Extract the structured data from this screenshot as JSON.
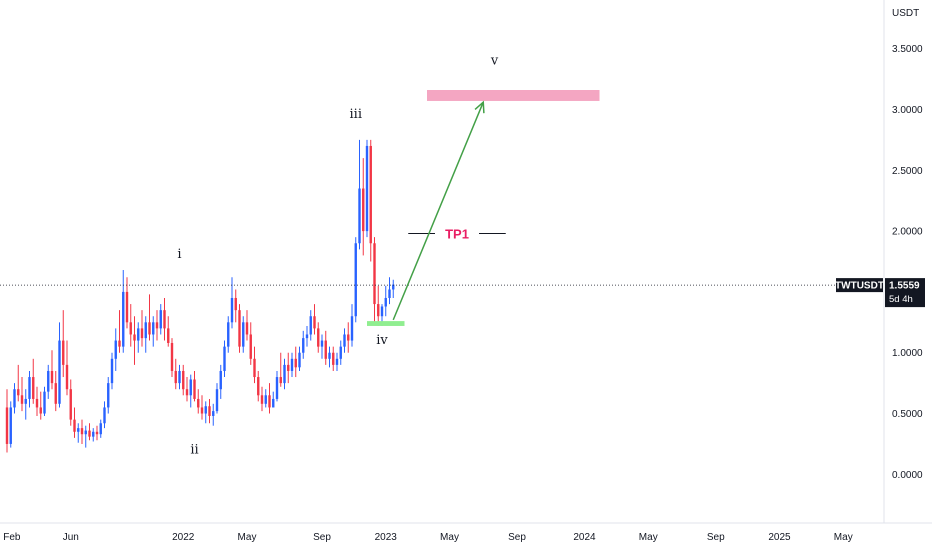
{
  "chart_data": {
    "type": "candlestick",
    "symbol": "TWTUSDT",
    "currency_label": "USDT",
    "last_price": "1.5559",
    "countdown": "5d 4h",
    "ylim": [
      -0.4,
      3.9
    ],
    "y_ticks": [
      {
        "value": 0.0,
        "label": "0.0000"
      },
      {
        "value": 0.5,
        "label": "0.5000"
      },
      {
        "value": 1.0,
        "label": "1.0000"
      },
      {
        "value": 1.5,
        "label": "1.5000"
      },
      {
        "value": 2.0,
        "label": "2.0000"
      },
      {
        "value": 2.5,
        "label": "2.5000"
      },
      {
        "value": 3.0,
        "label": "3.0000"
      },
      {
        "value": 3.5,
        "label": "3.5000"
      }
    ],
    "x_ticks": [
      {
        "i": -1,
        "label": "Feb"
      },
      {
        "i": 17,
        "label": "Jun"
      },
      {
        "i": 47,
        "label": "2022"
      },
      {
        "i": 64,
        "label": "May"
      },
      {
        "i": 84,
        "label": "Sep"
      },
      {
        "i": 101,
        "label": "2023"
      },
      {
        "i": 118,
        "label": "May"
      },
      {
        "i": 136,
        "label": "Sep"
      },
      {
        "i": 154,
        "label": "2024"
      },
      {
        "i": 171,
        "label": "May"
      },
      {
        "i": 189,
        "label": "Sep"
      },
      {
        "i": 206,
        "label": "2025"
      },
      {
        "i": 223,
        "label": "May"
      }
    ],
    "candles": [
      [
        0.55,
        0.7,
        0.18,
        0.25
      ],
      [
        0.25,
        0.6,
        0.22,
        0.55
      ],
      [
        0.55,
        0.75,
        0.5,
        0.7
      ],
      [
        0.7,
        0.9,
        0.6,
        0.65
      ],
      [
        0.65,
        0.8,
        0.52,
        0.58
      ],
      [
        0.58,
        0.7,
        0.45,
        0.62
      ],
      [
        0.62,
        0.85,
        0.55,
        0.8
      ],
      [
        0.8,
        0.95,
        0.58,
        0.62
      ],
      [
        0.62,
        0.72,
        0.48,
        0.55
      ],
      [
        0.55,
        0.68,
        0.45,
        0.5
      ],
      [
        0.5,
        0.72,
        0.48,
        0.68
      ],
      [
        0.68,
        0.9,
        0.62,
        0.85
      ],
      [
        0.85,
        1.02,
        0.7,
        0.75
      ],
      [
        0.75,
        0.85,
        0.52,
        0.58
      ],
      [
        0.58,
        1.25,
        0.55,
        1.1
      ],
      [
        1.1,
        1.35,
        0.8,
        0.9
      ],
      [
        0.9,
        1.1,
        0.65,
        0.7
      ],
      [
        0.7,
        0.78,
        0.4,
        0.45
      ],
      [
        0.45,
        0.55,
        0.3,
        0.35
      ],
      [
        0.35,
        0.42,
        0.26,
        0.38
      ],
      [
        0.38,
        0.45,
        0.25,
        0.33
      ],
      [
        0.33,
        0.4,
        0.22,
        0.36
      ],
      [
        0.36,
        0.42,
        0.28,
        0.31
      ],
      [
        0.31,
        0.38,
        0.27,
        0.35
      ],
      [
        0.35,
        0.4,
        0.28,
        0.33
      ],
      [
        0.33,
        0.45,
        0.3,
        0.42
      ],
      [
        0.42,
        0.6,
        0.38,
        0.55
      ],
      [
        0.55,
        0.8,
        0.5,
        0.75
      ],
      [
        0.75,
        1.0,
        0.7,
        0.95
      ],
      [
        0.95,
        1.2,
        0.85,
        1.1
      ],
      [
        1.1,
        1.35,
        1.0,
        1.05
      ],
      [
        1.05,
        1.68,
        1.0,
        1.5
      ],
      [
        1.5,
        1.62,
        1.2,
        1.25
      ],
      [
        1.25,
        1.4,
        1.05,
        1.15
      ],
      [
        1.15,
        1.3,
        0.9,
        1.1
      ],
      [
        1.1,
        1.25,
        1.0,
        1.2
      ],
      [
        1.2,
        1.35,
        1.05,
        1.12
      ],
      [
        1.12,
        1.3,
        1.0,
        1.25
      ],
      [
        1.25,
        1.48,
        1.1,
        1.15
      ],
      [
        1.15,
        1.3,
        1.05,
        1.25
      ],
      [
        1.25,
        1.35,
        1.1,
        1.2
      ],
      [
        1.2,
        1.4,
        1.15,
        1.35
      ],
      [
        1.35,
        1.45,
        1.1,
        1.2
      ],
      [
        1.2,
        1.3,
        1.05,
        1.08
      ],
      [
        1.08,
        1.12,
        0.8,
        0.85
      ],
      [
        0.85,
        0.95,
        0.7,
        0.75
      ],
      [
        0.75,
        0.9,
        0.7,
        0.85
      ],
      [
        0.85,
        0.9,
        0.65,
        0.7
      ],
      [
        0.7,
        0.8,
        0.6,
        0.65
      ],
      [
        0.65,
        0.82,
        0.55,
        0.78
      ],
      [
        0.78,
        0.85,
        0.6,
        0.62
      ],
      [
        0.62,
        0.7,
        0.5,
        0.55
      ],
      [
        0.55,
        0.65,
        0.45,
        0.5
      ],
      [
        0.5,
        0.6,
        0.42,
        0.56
      ],
      [
        0.56,
        0.62,
        0.42,
        0.48
      ],
      [
        0.48,
        0.58,
        0.4,
        0.52
      ],
      [
        0.52,
        0.75,
        0.5,
        0.7
      ],
      [
        0.7,
        0.9,
        0.62,
        0.85
      ],
      [
        0.85,
        1.1,
        0.8,
        1.05
      ],
      [
        1.05,
        1.3,
        1.0,
        1.25
      ],
      [
        1.25,
        1.62,
        1.2,
        1.45
      ],
      [
        1.45,
        1.52,
        1.25,
        1.35
      ],
      [
        1.35,
        1.4,
        1.0,
        1.05
      ],
      [
        1.05,
        1.3,
        1.0,
        1.25
      ],
      [
        1.25,
        1.35,
        1.1,
        1.15
      ],
      [
        1.15,
        1.25,
        0.9,
        0.95
      ],
      [
        0.95,
        1.05,
        0.75,
        0.8
      ],
      [
        0.8,
        0.85,
        0.6,
        0.65
      ],
      [
        0.65,
        0.72,
        0.52,
        0.58
      ],
      [
        0.58,
        0.7,
        0.55,
        0.65
      ],
      [
        0.65,
        0.75,
        0.5,
        0.55
      ],
      [
        0.55,
        0.68,
        0.55,
        0.62
      ],
      [
        0.62,
        0.85,
        0.6,
        0.8
      ],
      [
        0.8,
        1.0,
        0.72,
        0.75
      ],
      [
        0.75,
        0.95,
        0.7,
        0.9
      ],
      [
        0.9,
        1.0,
        0.75,
        0.85
      ],
      [
        0.85,
        1.0,
        0.8,
        0.95
      ],
      [
        0.95,
        1.05,
        0.8,
        0.88
      ],
      [
        0.88,
        1.05,
        0.85,
        1.0
      ],
      [
        1.0,
        1.18,
        0.95,
        1.12
      ],
      [
        1.12,
        1.22,
        1.05,
        1.15
      ],
      [
        1.15,
        1.35,
        1.1,
        1.3
      ],
      [
        1.3,
        1.4,
        1.15,
        1.2
      ],
      [
        1.2,
        1.25,
        1.0,
        1.05
      ],
      [
        1.05,
        1.15,
        0.95,
        1.1
      ],
      [
        1.1,
        1.18,
        0.9,
        0.95
      ],
      [
        0.95,
        1.05,
        0.88,
        1.0
      ],
      [
        1.0,
        1.05,
        0.85,
        0.9
      ],
      [
        0.9,
        1.0,
        0.85,
        0.95
      ],
      [
        0.95,
        1.1,
        0.9,
        1.05
      ],
      [
        1.05,
        1.2,
        1.0,
        1.15
      ],
      [
        1.15,
        1.25,
        1.0,
        1.1
      ],
      [
        1.1,
        1.4,
        1.05,
        1.3
      ],
      [
        1.3,
        1.95,
        1.25,
        1.9
      ],
      [
        1.9,
        2.75,
        1.85,
        2.35
      ],
      [
        2.35,
        2.6,
        1.8,
        2.0
      ],
      [
        2.0,
        2.75,
        1.95,
        2.7
      ],
      [
        2.7,
        2.75,
        1.75,
        1.9
      ],
      [
        1.9,
        1.95,
        1.25,
        1.4
      ],
      [
        1.4,
        1.55,
        1.22,
        1.3
      ],
      [
        1.3,
        1.4,
        1.22,
        1.38
      ],
      [
        1.38,
        1.55,
        1.3,
        1.45
      ],
      [
        1.45,
        1.62,
        1.4,
        1.52
      ],
      [
        1.52,
        1.6,
        1.45,
        1.56
      ]
    ],
    "wave_labels": [
      {
        "text": "i",
        "i": 46,
        "y": 1.78
      },
      {
        "text": "ii",
        "i": 50,
        "y": 0.17
      },
      {
        "text": "iii",
        "i": 93,
        "y": 2.93
      },
      {
        "text": "iv",
        "i": 100,
        "y": 1.07
      },
      {
        "text": "v",
        "i": 130,
        "y": 3.37
      }
    ],
    "target_zone": {
      "i0": 112,
      "i1": 158,
      "y0": 3.07,
      "y1": 3.16,
      "color": "#f4a6c2"
    },
    "support_zone": {
      "i0": 96,
      "i1": 106,
      "y0": 1.22,
      "y1": 1.26,
      "color": "#90ee90"
    },
    "projection_arrow": {
      "i0": 103,
      "i1": 127,
      "y0": 1.27,
      "y1": 3.06,
      "color": "#43a047"
    },
    "tp1": {
      "label": "TP1",
      "i0": 107,
      "i1": 133,
      "y": 1.98
    },
    "last_price_line": 1.5559,
    "colors": {
      "up": "#2962ff",
      "down": "#f23645",
      "badge": "#131722"
    }
  }
}
